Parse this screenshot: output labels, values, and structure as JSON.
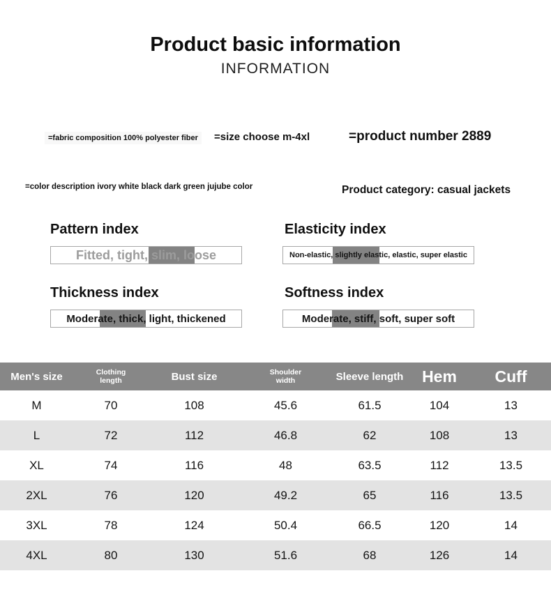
{
  "header": {
    "title": "Product basic information",
    "subtitle": "INFORMATION"
  },
  "attributes": {
    "fabric": "=fabric composition 100% polyester fiber",
    "size_range": "=size choose m-4xl",
    "product_number": "=product number 2889",
    "color_description": "=color description ivory white black dark green jujube color",
    "category": "Product category: casual jackets"
  },
  "index_panels": [
    {
      "title": "Pattern index",
      "options": "Fitted, tight, slim, loose",
      "highlighted": "slim"
    },
    {
      "title": "Elasticity index",
      "options": "Non-elastic, slightly elastic, elastic, super elastic",
      "highlighted": "slightly elastic"
    },
    {
      "title": "Thickness index",
      "options": "Moderate, thick, light, thickened",
      "highlighted": "thick"
    },
    {
      "title": "Softness index",
      "options": "Moderate, stiff, soft, super soft",
      "highlighted": "stiff"
    }
  ],
  "size_table": {
    "columns": [
      "Men's size",
      "Clothing length",
      "Bust size",
      "Shoulder width",
      "Sleeve length",
      "Hem",
      "Cuff"
    ],
    "rows": [
      [
        "M",
        "70",
        "108",
        "45.6",
        "61.5",
        "104",
        "13"
      ],
      [
        "L",
        "72",
        "112",
        "46.8",
        "62",
        "108",
        "13"
      ],
      [
        "XL",
        "74",
        "116",
        "48",
        "63.5",
        "112",
        "13.5"
      ],
      [
        "2XL",
        "76",
        "120",
        "49.2",
        "65",
        "116",
        "13.5"
      ],
      [
        "3XL",
        "78",
        "124",
        "50.4",
        "66.5",
        "120",
        "14"
      ],
      [
        "4XL",
        "80",
        "130",
        "51.6",
        "68",
        "126",
        "14"
      ]
    ]
  },
  "colors": {
    "table_header_bg": "#878787",
    "table_row_alt_bg": "#e3e3e3",
    "highlight_bar_bg": "#838383",
    "muted_option_text": "#9c9c9c"
  }
}
